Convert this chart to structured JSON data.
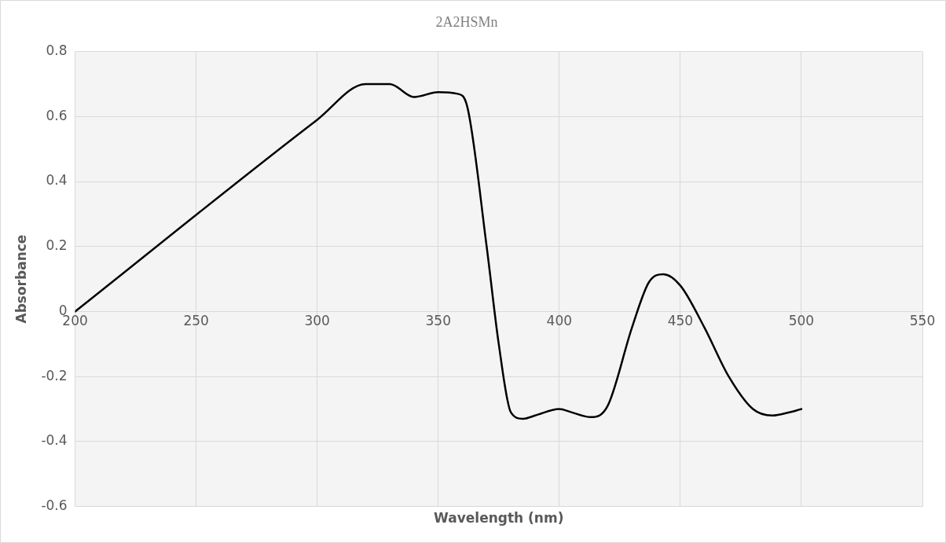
{
  "chart_data": {
    "type": "line",
    "title": "2A2HSMn",
    "xlabel": "Wavelength (nm)",
    "ylabel": "Absorbance",
    "xlim": [
      200,
      550
    ],
    "xticks": [
      200,
      250,
      300,
      350,
      400,
      450,
      500,
      550
    ],
    "ylim": [
      -0.6,
      0.8
    ],
    "yticks": [
      -0.6,
      -0.4,
      -0.2,
      0,
      0.2,
      0.4,
      0.6,
      0.8
    ],
    "grid": true,
    "legend": false,
    "marker": "none",
    "line_style": "solid",
    "series": [
      {
        "color": "#000000",
        "x": [
          200,
          300,
          320,
          330,
          340,
          350,
          358,
          362,
          370,
          375,
          380,
          385,
          390,
          400,
          405,
          413,
          420,
          430,
          437,
          443,
          450,
          460,
          470,
          480,
          488,
          495,
          500
        ],
        "values": [
          0,
          0.59,
          0.7,
          0.7,
          0.66,
          0.675,
          0.67,
          0.63,
          0.2,
          -0.1,
          -0.31,
          -0.33,
          -0.32,
          -0.3,
          -0.31,
          -0.325,
          -0.29,
          -0.05,
          0.09,
          0.115,
          0.08,
          -0.05,
          -0.2,
          -0.3,
          -0.32,
          -0.31,
          -0.3
        ]
      }
    ]
  }
}
